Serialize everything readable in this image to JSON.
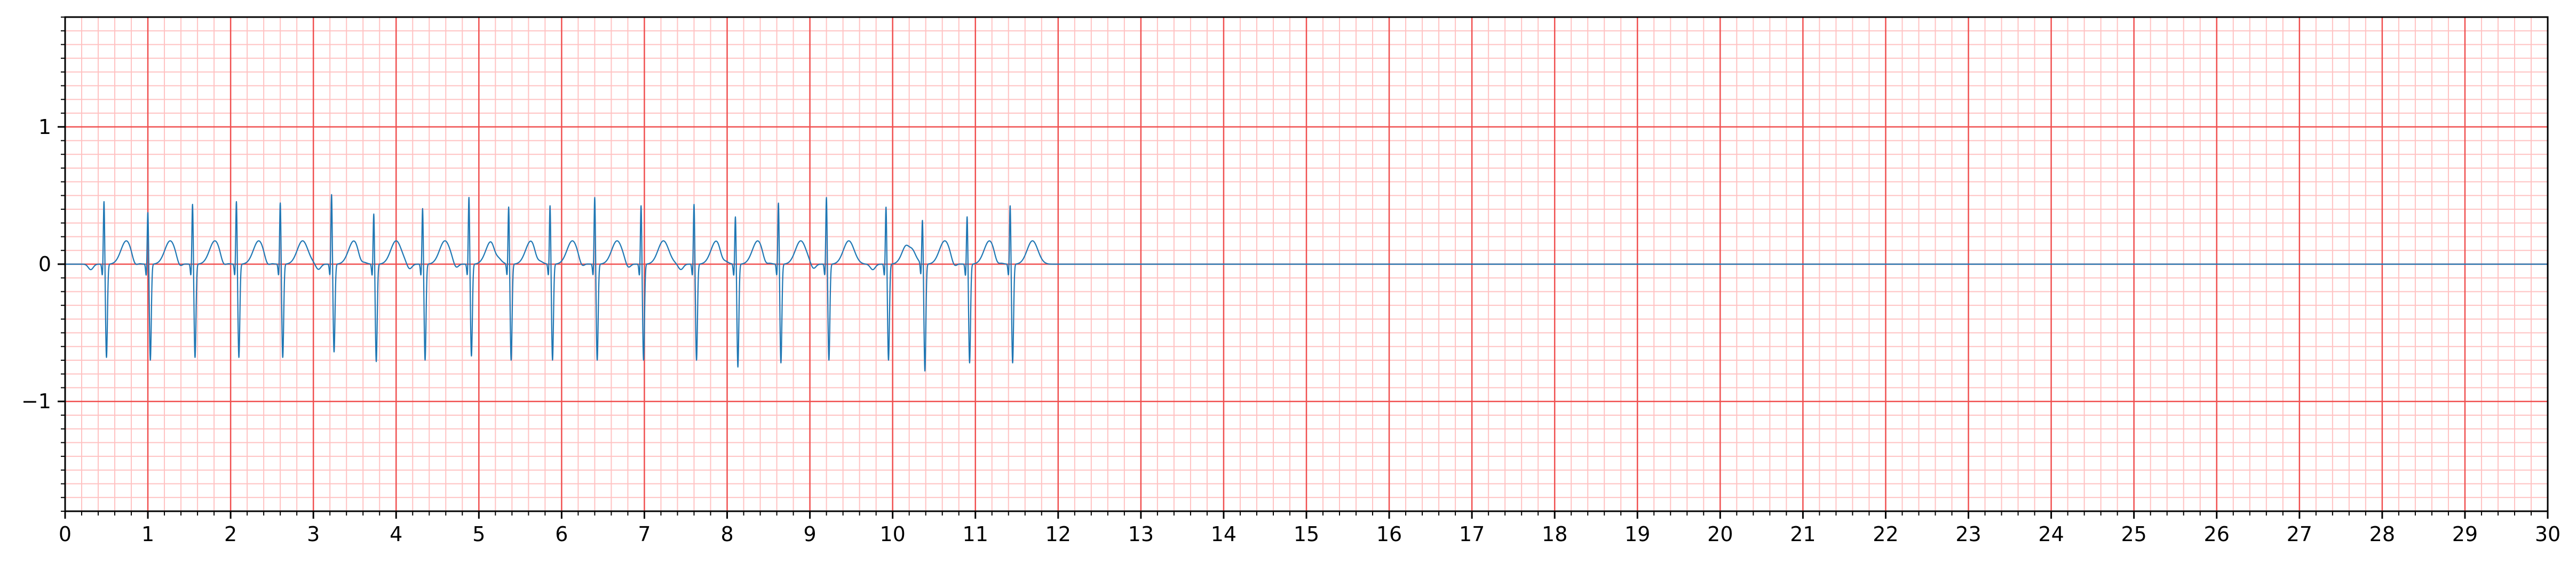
{
  "chart_data": {
    "type": "line",
    "title": "",
    "xlabel": "",
    "ylabel": "",
    "xlim": [
      0,
      30
    ],
    "ylim": [
      -1.8,
      1.8
    ],
    "x_ticks": [
      0,
      1,
      2,
      3,
      4,
      5,
      6,
      7,
      8,
      9,
      10,
      11,
      12,
      13,
      14,
      15,
      16,
      17,
      18,
      19,
      20,
      21,
      22,
      23,
      24,
      25,
      26,
      27,
      28,
      29,
      30
    ],
    "x_tick_labels": [
      "0",
      "1",
      "2",
      "3",
      "4",
      "5",
      "6",
      "7",
      "8",
      "9",
      "10",
      "11",
      "12",
      "13",
      "14",
      "15",
      "16",
      "17",
      "18",
      "19",
      "20",
      "21",
      "22",
      "23",
      "24",
      "25",
      "26",
      "27",
      "28",
      "29",
      "30"
    ],
    "y_ticks": [
      -1,
      0,
      1
    ],
    "y_tick_labels": [
      "−1",
      "0",
      "1"
    ],
    "grid": {
      "major": true,
      "minor": true,
      "major_x_step": 1,
      "minor_x_step": 0.2,
      "major_y_step": 1,
      "minor_y_step": 0.1,
      "major_color": "#f05050",
      "minor_color": "#ffc2c2"
    },
    "series": [
      {
        "color": "#1f77b4",
        "ecg": {
          "end": 12.0,
          "t_amp": 0.17,
          "beats": [
            {
              "t": 0.47,
              "r": 0.48,
              "s": -0.68
            },
            {
              "t": 1.0,
              "r": 0.4,
              "s": -0.7
            },
            {
              "t": 1.54,
              "r": 0.46,
              "s": -0.68
            },
            {
              "t": 2.07,
              "r": 0.48,
              "s": -0.68
            },
            {
              "t": 2.6,
              "r": 0.47,
              "s": -0.68
            },
            {
              "t": 3.22,
              "r": 0.53,
              "s": -0.64
            },
            {
              "t": 3.73,
              "r": 0.39,
              "s": -0.71
            },
            {
              "t": 4.32,
              "r": 0.43,
              "s": -0.7
            },
            {
              "t": 4.88,
              "r": 0.51,
              "s": -0.67
            },
            {
              "t": 5.36,
              "r": 0.44,
              "s": -0.7
            },
            {
              "t": 5.86,
              "r": 0.45,
              "s": -0.7
            },
            {
              "t": 6.4,
              "r": 0.51,
              "s": -0.7
            },
            {
              "t": 6.96,
              "r": 0.45,
              "s": -0.7
            },
            {
              "t": 7.6,
              "r": 0.46,
              "s": -0.7
            },
            {
              "t": 8.1,
              "r": 0.37,
              "s": -0.75
            },
            {
              "t": 8.62,
              "r": 0.47,
              "s": -0.72
            },
            {
              "t": 9.2,
              "r": 0.51,
              "s": -0.7
            },
            {
              "t": 9.92,
              "r": 0.44,
              "s": -0.7
            },
            {
              "t": 10.36,
              "r": 0.34,
              "s": -0.78
            },
            {
              "t": 10.9,
              "r": 0.37,
              "s": -0.72
            },
            {
              "t": 11.42,
              "r": 0.45,
              "s": -0.72
            }
          ]
        },
        "flat_line": {
          "x": [
            12.0,
            30.0
          ],
          "y": [
            0,
            0
          ]
        }
      }
    ]
  }
}
